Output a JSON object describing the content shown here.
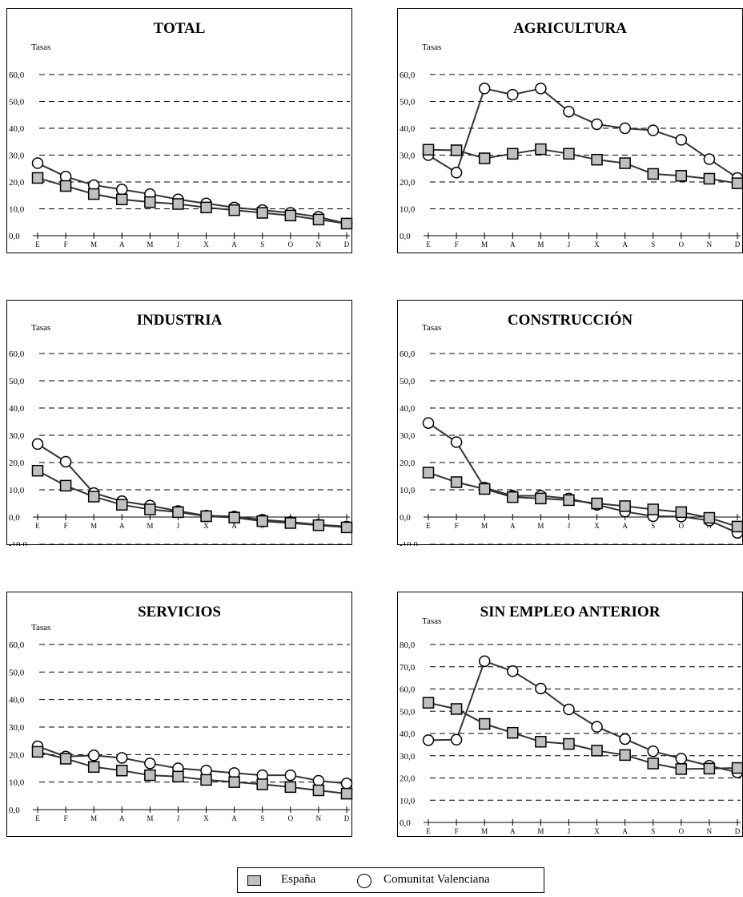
{
  "months": [
    "E",
    "F",
    "M",
    "A",
    "M",
    "J",
    "X",
    "A",
    "S",
    "O",
    "N",
    "D"
  ],
  "legend": {
    "spain": "España",
    "valencia": "Comunitat Valenciana"
  },
  "colors": {
    "spain_fill": "#c0c0c0",
    "line": "#000000",
    "marker_circle_fill": "#ffffff"
  },
  "chart_data": [
    {
      "type": "line",
      "title": "TOTAL",
      "ylabel": "Tasas",
      "ylim": [
        0,
        60
      ],
      "yticks": [
        "0,0",
        "10,0",
        "20,0",
        "30,0",
        "40,0",
        "50,0",
        "60,0"
      ],
      "ytick_values": [
        0,
        10,
        20,
        30,
        40,
        50,
        60
      ],
      "x": [
        "E",
        "F",
        "M",
        "A",
        "M",
        "J",
        "X",
        "A",
        "S",
        "O",
        "N",
        "D"
      ],
      "grid": "dashed",
      "series": [
        {
          "name": "España",
          "marker": "square",
          "values": [
            21.5,
            18.5,
            15.5,
            13.5,
            12.5,
            11.8,
            10.5,
            9.5,
            8.5,
            7.5,
            6.0,
            4.5
          ]
        },
        {
          "name": "Comunitat Valenciana",
          "marker": "circle",
          "values": [
            27.0,
            22.0,
            18.8,
            17.2,
            15.5,
            13.5,
            12.0,
            10.5,
            9.5,
            8.5,
            7.0,
            4.5
          ]
        }
      ]
    },
    {
      "type": "line",
      "title": "AGRICULTURA",
      "ylabel": "Tasas",
      "ylim": [
        0,
        60
      ],
      "yticks": [
        "0,0",
        "10,0",
        "20,0",
        "30,0",
        "40,0",
        "50,0",
        "60,0"
      ],
      "ytick_values": [
        0,
        10,
        20,
        30,
        40,
        50,
        60
      ],
      "x": [
        "E",
        "F",
        "M",
        "A",
        "M",
        "J",
        "X",
        "A",
        "S",
        "O",
        "N",
        "D"
      ],
      "grid": "dashed",
      "series": [
        {
          "name": "España",
          "marker": "square",
          "values": [
            32.0,
            31.8,
            28.8,
            30.5,
            32.2,
            30.5,
            28.3,
            27.0,
            23.0,
            22.3,
            21.2,
            19.5
          ]
        },
        {
          "name": "Comunitat Valenciana",
          "marker": "circle",
          "values": [
            30.0,
            23.5,
            54.8,
            52.5,
            54.8,
            46.2,
            41.5,
            40.0,
            39.2,
            35.7,
            28.5,
            21.5
          ]
        }
      ]
    },
    {
      "type": "line",
      "title": "INDUSTRIA",
      "ylabel": "Tasas",
      "ylim": [
        -10,
        60
      ],
      "yticks": [
        "-10,0",
        "0,0",
        "10,0",
        "20,0",
        "30,0",
        "40,0",
        "50,0",
        "60,0"
      ],
      "ytick_values": [
        -10,
        0,
        10,
        20,
        30,
        40,
        50,
        60
      ],
      "x": [
        "E",
        "F",
        "M",
        "A",
        "M",
        "J",
        "X",
        "A",
        "S",
        "O",
        "N",
        "D"
      ],
      "grid": "dashed",
      "series": [
        {
          "name": "España",
          "marker": "square",
          "values": [
            17.0,
            11.5,
            7.5,
            4.5,
            2.8,
            1.8,
            0.3,
            -0.2,
            -1.5,
            -2.2,
            -3.0,
            -3.8
          ]
        },
        {
          "name": "Comunitat Valenciana",
          "marker": "circle",
          "values": [
            26.8,
            20.3,
            8.8,
            5.8,
            4.2,
            2.2,
            0.5,
            0.2,
            -1.0,
            -1.8,
            -2.8,
            -3.5
          ]
        }
      ]
    },
    {
      "type": "line",
      "title": "CONSTRUCCIÓN",
      "ylabel": "Tasas",
      "ylim": [
        -10,
        60
      ],
      "yticks": [
        "-10,0",
        "0,0",
        "10,0",
        "20,0",
        "30,0",
        "40,0",
        "50,0",
        "60,0"
      ],
      "ytick_values": [
        -10,
        0,
        10,
        20,
        30,
        40,
        50,
        60
      ],
      "x": [
        "E",
        "F",
        "M",
        "A",
        "M",
        "J",
        "X",
        "A",
        "S",
        "O",
        "N",
        "D"
      ],
      "grid": "dashed",
      "series": [
        {
          "name": "España",
          "marker": "square",
          "values": [
            16.3,
            12.8,
            10.3,
            7.3,
            6.8,
            6.2,
            5.0,
            4.0,
            2.8,
            1.8,
            -0.3,
            -3.5
          ]
        },
        {
          "name": "Comunitat Valenciana",
          "marker": "circle",
          "values": [
            34.5,
            27.5,
            10.8,
            7.8,
            7.8,
            6.8,
            4.5,
            2.0,
            0.3,
            0.2,
            -1.3,
            -5.8
          ]
        }
      ]
    },
    {
      "type": "line",
      "title": "SERVICIOS",
      "ylabel": "Tasas",
      "ylim": [
        0,
        60
      ],
      "yticks": [
        "0,0",
        "10,0",
        "20,0",
        "30,0",
        "40,0",
        "50,0",
        "60,0"
      ],
      "ytick_values": [
        0,
        10,
        20,
        30,
        40,
        50,
        60
      ],
      "x": [
        "E",
        "F",
        "M",
        "A",
        "M",
        "J",
        "X",
        "A",
        "S",
        "O",
        "N",
        "D"
      ],
      "grid": "dashed",
      "series": [
        {
          "name": "España",
          "marker": "square",
          "values": [
            21.0,
            18.5,
            15.5,
            14.2,
            12.5,
            12.0,
            10.8,
            10.0,
            9.2,
            8.2,
            7.0,
            5.8
          ]
        },
        {
          "name": "Comunitat Valenciana",
          "marker": "circle",
          "values": [
            23.0,
            19.3,
            19.7,
            18.8,
            16.8,
            15.0,
            14.2,
            13.3,
            12.5,
            12.5,
            10.5,
            9.5
          ]
        }
      ]
    },
    {
      "type": "line",
      "title": "SIN EMPLEO ANTERIOR",
      "ylabel": "Tasas",
      "ylim": [
        0,
        80
      ],
      "yticks": [
        "0,0",
        "10,0",
        "20,0",
        "30,0",
        "40,0",
        "50,0",
        "60,0",
        "70,0",
        "80,0"
      ],
      "ytick_values": [
        0,
        10,
        20,
        30,
        40,
        50,
        60,
        70,
        80
      ],
      "x": [
        "E",
        "F",
        "M",
        "A",
        "M",
        "J",
        "X",
        "A",
        "S",
        "O",
        "N",
        "D"
      ],
      "grid": "dashed",
      "series": [
        {
          "name": "España",
          "marker": "square",
          "values": [
            53.8,
            51.0,
            44.3,
            40.3,
            36.3,
            35.3,
            32.3,
            30.3,
            26.5,
            24.0,
            24.2,
            24.5
          ]
        },
        {
          "name": "Comunitat Valenciana",
          "marker": "circle",
          "values": [
            37.0,
            37.2,
            72.5,
            68.0,
            60.2,
            50.8,
            43.0,
            37.5,
            32.0,
            28.7,
            25.5,
            22.5
          ]
        }
      ]
    }
  ]
}
